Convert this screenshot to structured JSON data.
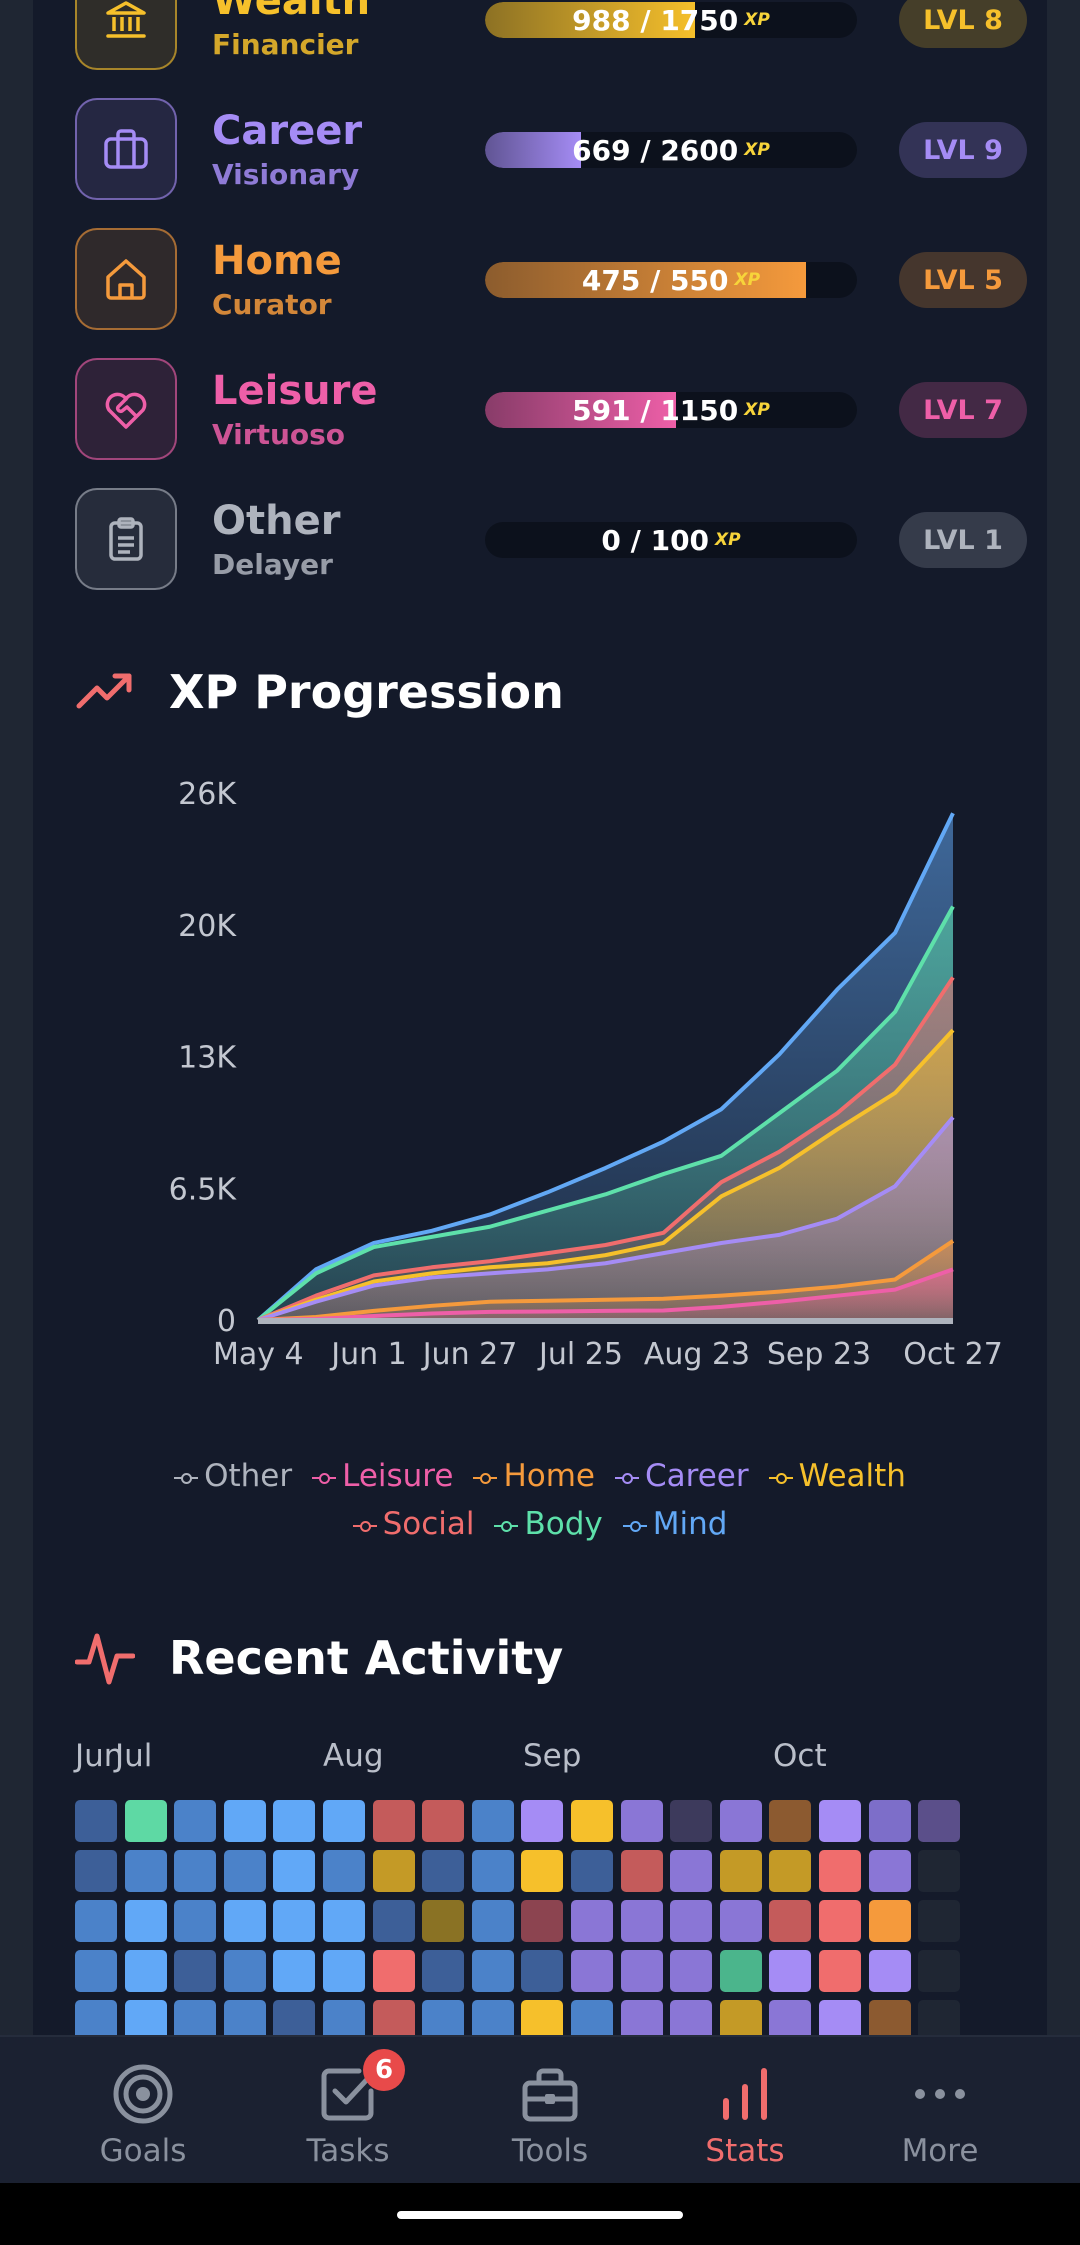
{
  "categories": [
    {
      "name": "Wealth",
      "title": "Financier",
      "xp": "988 / 1750",
      "xp_suffix": "XP",
      "level": "LVL 8",
      "color": "#f6c02b",
      "progress": 0.565,
      "icon": "bank-icon"
    },
    {
      "name": "Career",
      "title": "Visionary",
      "xp": "669 / 2600",
      "xp_suffix": "XP",
      "level": "LVL 9",
      "color": "#a58cf5",
      "progress": 0.257,
      "icon": "briefcase-icon"
    },
    {
      "name": "Home",
      "title": "Curator",
      "xp": "475 / 550",
      "xp_suffix": "XP",
      "level": "LVL 5",
      "color": "#f59a3c",
      "progress": 0.864,
      "icon": "house-icon"
    },
    {
      "name": "Leisure",
      "title": "Virtuoso",
      "xp": "591 / 1150",
      "xp_suffix": "XP",
      "level": "LVL 7",
      "color": "#ee5fa8",
      "progress": 0.514,
      "icon": "heart-handshake-icon"
    },
    {
      "name": "Other",
      "title": "Delayer",
      "xp": "0 / 100",
      "xp_suffix": "XP",
      "level": "LVL 1",
      "color": "#aeb3bd",
      "progress": 0,
      "icon": "clipboard-icon"
    }
  ],
  "progression_title": "XP Progression",
  "activity_title": "Recent Activity",
  "chart_data": {
    "type": "area",
    "title": "XP Progression",
    "stacked": true,
    "ylim": [
      0,
      26000
    ],
    "y_ticks": [
      "0",
      "6.5K",
      "13K",
      "20K",
      "26K"
    ],
    "y_tick_values": [
      0,
      6500,
      13000,
      19500,
      26000
    ],
    "x_tick_labels": [
      "May 4",
      "Jun 1",
      "Jun 27",
      "Jul 25",
      "Aug 23",
      "Sep 23",
      "Oct 27"
    ],
    "x": [
      "May 4",
      "May 18",
      "Jun 1",
      "Jun 14",
      "Jun 27",
      "Jul 11",
      "Jul 25",
      "Aug 8",
      "Aug 23",
      "Sep 7",
      "Sep 23",
      "Oct 10",
      "Oct 27"
    ],
    "series": [
      {
        "name": "Other",
        "color": "#aeb3bd",
        "values": [
          0,
          0,
          0,
          0,
          0,
          0,
          0,
          0,
          0,
          0,
          0,
          0,
          0
        ]
      },
      {
        "name": "Leisure",
        "color": "#ee5fa8",
        "values": [
          0,
          50,
          200,
          320,
          400,
          420,
          450,
          470,
          650,
          900,
          1200,
          1500,
          2500
        ]
      },
      {
        "name": "Home",
        "color": "#f59a3c",
        "values": [
          0,
          150,
          450,
          700,
          900,
          950,
          1000,
          1050,
          1200,
          1400,
          1650,
          2000,
          3900
        ]
      },
      {
        "name": "Career",
        "color": "#a58cf5",
        "values": [
          0,
          900,
          1700,
          2100,
          2300,
          2500,
          2800,
          3300,
          3800,
          4200,
          5000,
          6600,
          10000
        ]
      },
      {
        "name": "Wealth",
        "color": "#f6c02b",
        "values": [
          0,
          1000,
          1900,
          2300,
          2600,
          2800,
          3200,
          3800,
          6100,
          7500,
          9400,
          11200,
          14300
        ]
      },
      {
        "name": "Social",
        "color": "#f06d6d",
        "values": [
          0,
          1200,
          2200,
          2600,
          2900,
          3300,
          3700,
          4300,
          6800,
          8300,
          10200,
          12600,
          16900
        ]
      },
      {
        "name": "Body",
        "color": "#5ee0aa",
        "values": [
          0,
          2300,
          3600,
          4100,
          4600,
          5400,
          6200,
          7200,
          8100,
          10200,
          12300,
          15200,
          20400
        ]
      },
      {
        "name": "Mind",
        "color": "#62a8f5",
        "values": [
          0,
          2500,
          3800,
          4400,
          5200,
          6300,
          7500,
          8800,
          10400,
          13100,
          16300,
          19100,
          25000
        ]
      }
    ],
    "legend_position": "bottom"
  },
  "legend_rows": [
    [
      {
        "name": "Other",
        "color": "#aeb3bd"
      },
      {
        "name": "Leisure",
        "color": "#ee5fa8"
      },
      {
        "name": "Home",
        "color": "#f59a3c"
      },
      {
        "name": "Career",
        "color": "#a58cf5"
      },
      {
        "name": "Wealth",
        "color": "#f6c02b"
      }
    ],
    [
      {
        "name": "Social",
        "color": "#f06d6d"
      },
      {
        "name": "Body",
        "color": "#5ee0aa"
      },
      {
        "name": "Mind",
        "color": "#62a8f5"
      }
    ]
  ],
  "heatmap": {
    "months": [
      "Jun",
      "Jul",
      "Aug",
      "Sep",
      "Oct"
    ],
    "palette": {
      "M": "#3d5f98",
      "m": "#4b82c9",
      "B": "#61a8f7",
      "g": "#5ed9a4",
      "G": "#4bb58c",
      "r": "#c45b5b",
      "R": "#f06d6d",
      "d": "#8c4450",
      "p": "#a58cf5",
      "P": "#8a76d6",
      "u": "#7d6ec9",
      "v": "#5b4f8a",
      "n": "#3d3a5c",
      "y": "#f6c02b",
      "o": "#c49a26",
      "O": "#8a7224",
      "h": "#f59a3c",
      "b": "#8c5a30",
      "e": "#1f2633"
    },
    "rows": [
      "MgmBBBrrmpyPnPbpuv",
      "MmmmBmoMmyMrPooRPe",
      "mBmBBBMOmdPPPPrRhe",
      "mBMmBBRMmMPPPGpRpe",
      "mBmmMmrmmymPPoPpbe"
    ]
  },
  "nav": {
    "items": [
      {
        "label": "Goals",
        "icon": "target-icon",
        "active": false
      },
      {
        "label": "Tasks",
        "icon": "checkbox-icon",
        "active": false,
        "badge": "6"
      },
      {
        "label": "Tools",
        "icon": "toolbox-icon",
        "active": false
      },
      {
        "label": "Stats",
        "icon": "bar-chart-icon",
        "active": true
      },
      {
        "label": "More",
        "icon": "more-dots-icon",
        "active": false
      }
    ],
    "active_color": "#f06d6d"
  }
}
